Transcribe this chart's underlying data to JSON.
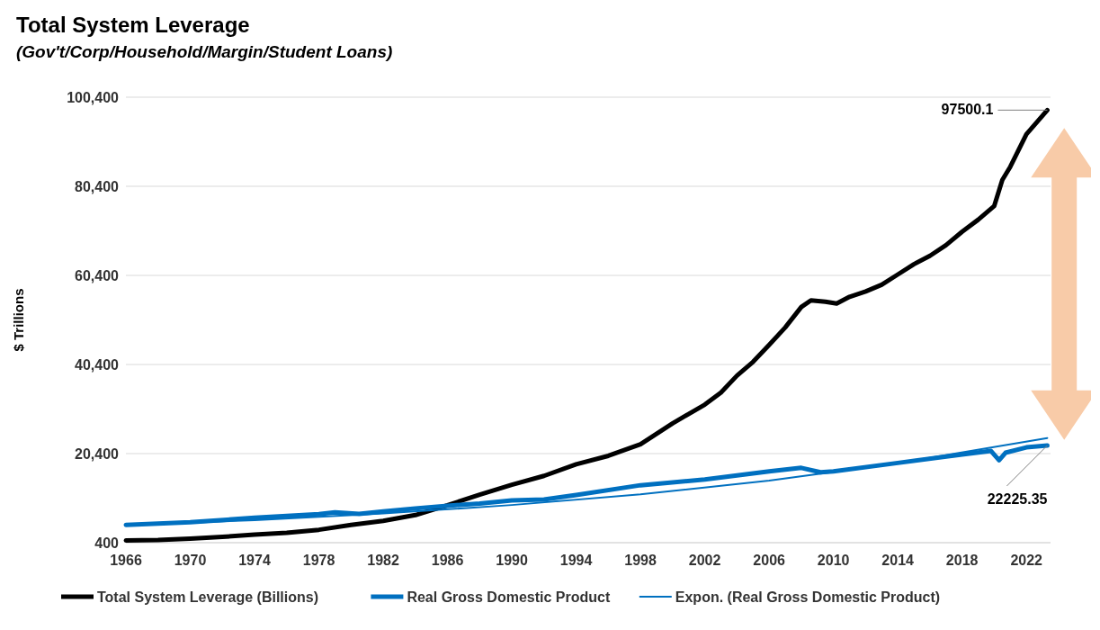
{
  "chart_data": {
    "type": "line",
    "title": "Total System Leverage",
    "subtitle": "(Gov't/Corp/Household/Margin/Student Loans)",
    "ylabel": "$ Trillions",
    "xlim": [
      1966,
      2023.5
    ],
    "xticks": [
      1966,
      1970,
      1974,
      1978,
      1982,
      1986,
      1990,
      1994,
      1998,
      2002,
      2006,
      2010,
      2014,
      2018,
      2022
    ],
    "ylim": [
      400,
      100400
    ],
    "yticks": [
      {
        "value": 400,
        "label": "400"
      },
      {
        "value": 20400,
        "label": "20,400"
      },
      {
        "value": 40400,
        "label": "40,400"
      },
      {
        "value": 60400,
        "label": "60,400"
      },
      {
        "value": 80400,
        "label": "80,400"
      },
      {
        "value": 100400,
        "label": "100,400"
      }
    ],
    "grid": "y",
    "legend": "bottom",
    "series": [
      {
        "name": "Total System Leverage (Billions)",
        "color": "#000000",
        "x": [
          1966,
          1968,
          1970,
          1972,
          1974,
          1976,
          1978,
          1980,
          1982,
          1984,
          1986,
          1988,
          1990,
          1992,
          1994,
          1996,
          1998,
          2000,
          2002,
          2003,
          2004,
          2005,
          2006,
          2007,
          2008,
          2008.6,
          2009.5,
          2010.2,
          2011,
          2012,
          2013,
          2014,
          2015,
          2016,
          2017,
          2018,
          2019,
          2020,
          2020.5,
          2021,
          2022,
          2023.3
        ],
        "values": [
          900,
          1000,
          1300,
          1700,
          2200,
          2600,
          3300,
          4400,
          5300,
          6600,
          8800,
          11200,
          13400,
          15400,
          18000,
          19900,
          22500,
          27200,
          31400,
          34100,
          37900,
          41000,
          44800,
          48700,
          53300,
          54800,
          54500,
          54100,
          55600,
          56800,
          58300,
          60600,
          62900,
          64800,
          67200,
          70200,
          72900,
          76000,
          81800,
          84800,
          92100,
          97500.1
        ]
      },
      {
        "name": "Real Gross Domestic Product",
        "color": "#0070c0",
        "x": [
          1966,
          1970,
          1974,
          1978,
          1979,
          1980.5,
          1982,
          1984,
          1986,
          1988,
          1990,
          1992,
          1994,
          1998,
          2002,
          2006,
          2008,
          2009.2,
          2010,
          2014,
          2018,
          2019.8,
          2020.3,
          2020.7,
          2022,
          2023.3
        ],
        "values": [
          4400,
          5000,
          6000,
          6800,
          7200,
          6850,
          7400,
          8100,
          8700,
          9200,
          9900,
          10100,
          11100,
          13300,
          14600,
          16400,
          17200,
          16200,
          16400,
          18300,
          20200,
          21000,
          18900,
          20600,
          21800,
          22225.35
        ]
      },
      {
        "name": "Expon. (Real Gross Domestic Product)",
        "color": "#0070c0",
        "x": [
          1966,
          1974,
          1982,
          1990,
          1998,
          2006,
          2014,
          2023.3
        ],
        "values": [
          4300,
          5470,
          6960,
          8860,
          11270,
          14340,
          18250,
          23900
        ]
      }
    ],
    "annotations": [
      {
        "text": "97500.1",
        "x": 2023.3,
        "y": 97500.1
      },
      {
        "text": "22225.35",
        "x": 2023.3,
        "y": 22225.35
      }
    ]
  }
}
